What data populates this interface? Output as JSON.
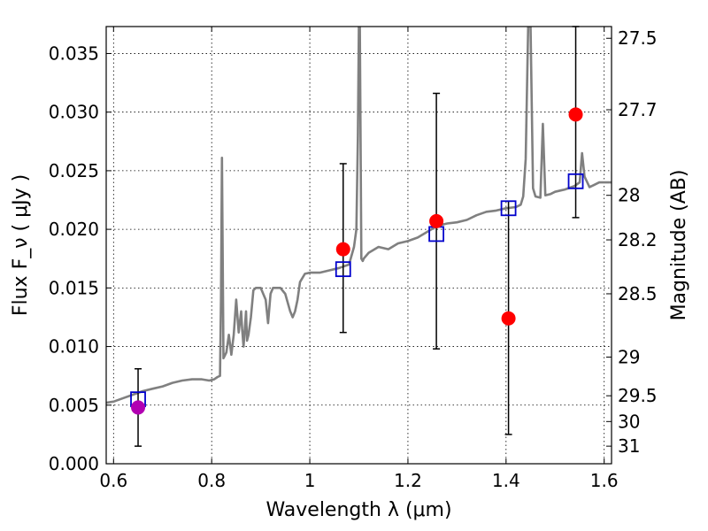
{
  "chart_data": {
    "type": "scatter",
    "title": "",
    "xlabel": "Wavelength  λ (μm)",
    "ylabel": "Flux  F_ν  ( μJy )",
    "ylabel_right": "Magnitude (AB)",
    "xlim": [
      0.585,
      1.615
    ],
    "ylim": [
      0.0,
      0.0373
    ],
    "grid": true,
    "x_ticks": [
      0.6,
      0.8,
      1.0,
      1.2,
      1.4,
      1.6
    ],
    "x_tick_labels": [
      "0.6",
      "0.8",
      "1",
      "1.2",
      "1.4",
      "1.6"
    ],
    "y_ticks": [
      0.0,
      0.005,
      0.01,
      0.015,
      0.02,
      0.025,
      0.03,
      0.035
    ],
    "y_tick_labels": [
      "0.000",
      "0.005",
      "0.010",
      "0.015",
      "0.020",
      "0.025",
      "0.030",
      "0.035"
    ],
    "right_ticks": [
      {
        "label": "27.5",
        "flux": 0.0363
      },
      {
        "label": "27.7",
        "flux": 0.0302
      },
      {
        "label": "28",
        "flux": 0.0229
      },
      {
        "label": "28.2",
        "flux": 0.0191
      },
      {
        "label": "28.5",
        "flux": 0.0145
      },
      {
        "label": "29",
        "flux": 0.0091
      },
      {
        "label": "29.5",
        "flux": 0.0058
      },
      {
        "label": "30",
        "flux": 0.0036
      },
      {
        "label": "31",
        "flux": 0.0015
      }
    ],
    "series": [
      {
        "kind": "spectrum",
        "color": "#808080",
        "x": [
          0.585,
          0.6,
          0.62,
          0.64,
          0.66,
          0.68,
          0.7,
          0.72,
          0.74,
          0.76,
          0.78,
          0.795,
          0.805,
          0.812,
          0.817,
          0.819,
          0.821,
          0.824,
          0.83,
          0.835,
          0.84,
          0.845,
          0.85,
          0.855,
          0.86,
          0.862,
          0.865,
          0.87,
          0.872,
          0.875,
          0.88,
          0.885,
          0.89,
          0.9,
          0.91,
          0.915,
          0.92,
          0.925,
          0.93,
          0.94,
          0.95,
          0.96,
          0.965,
          0.97,
          0.975,
          0.98,
          0.99,
          1.0,
          1.02,
          1.04,
          1.06,
          1.08,
          1.09,
          1.095,
          1.098,
          1.1,
          1.102,
          1.105,
          1.108,
          1.11,
          1.12,
          1.14,
          1.16,
          1.18,
          1.2,
          1.22,
          1.24,
          1.26,
          1.28,
          1.3,
          1.32,
          1.34,
          1.36,
          1.38,
          1.4,
          1.42,
          1.43,
          1.435,
          1.44,
          1.445,
          1.45,
          1.455,
          1.46,
          1.47,
          1.475,
          1.48,
          1.49,
          1.5,
          1.52,
          1.54,
          1.55,
          1.555,
          1.56,
          1.57,
          1.58,
          1.59,
          1.6,
          1.615
        ],
        "y": [
          0.0052,
          0.0053,
          0.0056,
          0.0059,
          0.0062,
          0.0064,
          0.0066,
          0.0069,
          0.0071,
          0.0072,
          0.0072,
          0.0071,
          0.0072,
          0.0074,
          0.0075,
          0.014,
          0.0261,
          0.009,
          0.0095,
          0.011,
          0.0093,
          0.011,
          0.014,
          0.0112,
          0.013,
          0.0115,
          0.01,
          0.013,
          0.0105,
          0.011,
          0.0125,
          0.0148,
          0.015,
          0.015,
          0.014,
          0.012,
          0.0145,
          0.015,
          0.015,
          0.015,
          0.0145,
          0.013,
          0.0125,
          0.013,
          0.014,
          0.0155,
          0.0162,
          0.0163,
          0.0163,
          0.0165,
          0.0167,
          0.017,
          0.0185,
          0.02,
          0.028,
          0.0373,
          0.0373,
          0.0175,
          0.0173,
          0.0175,
          0.018,
          0.0185,
          0.0183,
          0.0188,
          0.019,
          0.0193,
          0.0198,
          0.0203,
          0.0205,
          0.0206,
          0.0208,
          0.0212,
          0.0215,
          0.0216,
          0.0218,
          0.0219,
          0.0221,
          0.0228,
          0.026,
          0.0373,
          0.0373,
          0.0235,
          0.0228,
          0.0227,
          0.029,
          0.0229,
          0.023,
          0.0232,
          0.0234,
          0.0237,
          0.024,
          0.0265,
          0.0245,
          0.0236,
          0.0238,
          0.024,
          0.024,
          0.024
        ]
      },
      {
        "kind": "model_points",
        "marker": "open-square",
        "color": "#0000cc",
        "x": [
          0.65,
          1.068,
          1.258,
          1.405,
          1.542
        ],
        "y": [
          0.0055,
          0.0166,
          0.0196,
          0.0218,
          0.0241
        ]
      },
      {
        "kind": "observed_points",
        "marker": "filled-circle",
        "x": [
          0.65,
          1.068,
          1.258,
          1.405,
          1.542
        ],
        "y": [
          0.0048,
          0.0183,
          0.0207,
          0.0124,
          0.0298
        ],
        "colors": [
          "#b200b2",
          "#ff0000",
          "#ff0000",
          "#ff0000",
          "#ff0000"
        ],
        "yerr_low": [
          0.0015,
          0.0112,
          0.0098,
          0.0025,
          0.021
        ],
        "yerr_high": [
          0.0081,
          0.0256,
          0.0316,
          0.0224,
          0.0373
        ]
      }
    ]
  }
}
